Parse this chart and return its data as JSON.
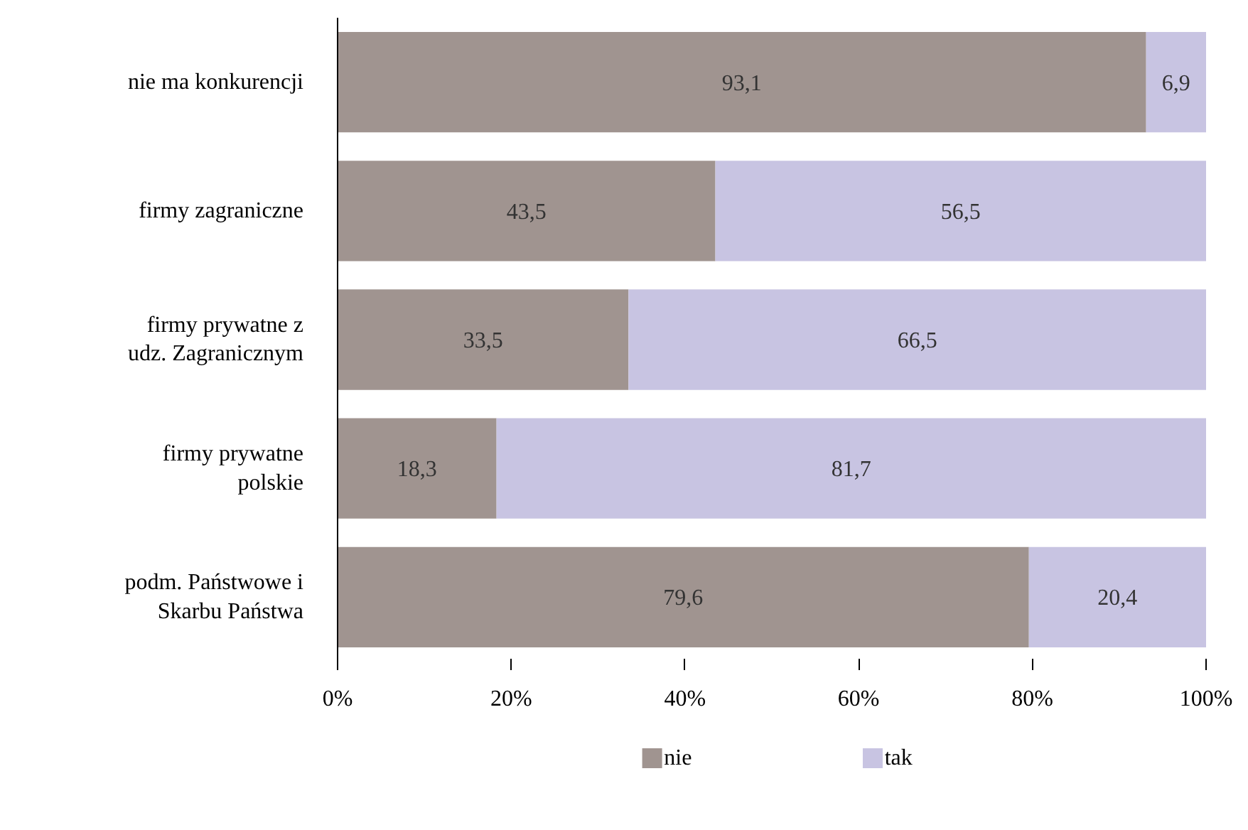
{
  "chart_data": {
    "type": "bar",
    "orientation": "horizontal",
    "stacked": true,
    "categories": [
      "nie ma konkurencji",
      "firmy zagraniczne",
      "firmy prywatne z udz. Zagranicznym",
      "firmy prywatne polskie",
      "podm. Państwowe i Skarbu Państwa"
    ],
    "series": [
      {
        "name": "nie",
        "color": "#a09490",
        "values": [
          93.1,
          43.5,
          33.5,
          18.3,
          79.6
        ],
        "value_labels": [
          "93,1",
          "43,5",
          "33,5",
          "18,3",
          "79,6"
        ]
      },
      {
        "name": "tak",
        "color": "#c8c4e2",
        "values": [
          6.9,
          56.5,
          66.5,
          81.7,
          20.4
        ],
        "value_labels": [
          "6,9",
          "56,5",
          "66,5",
          "81,7",
          "20,4"
        ]
      }
    ],
    "xlim": [
      0,
      100
    ],
    "xticks": [
      {
        "value": 0,
        "label": "0%"
      },
      {
        "value": 20,
        "label": "20%"
      },
      {
        "value": 40,
        "label": "40%"
      },
      {
        "value": 60,
        "label": "60%"
      },
      {
        "value": 80,
        "label": "80%"
      },
      {
        "value": 100,
        "label": "100%"
      }
    ],
    "grid": false,
    "legend": "bottom"
  }
}
